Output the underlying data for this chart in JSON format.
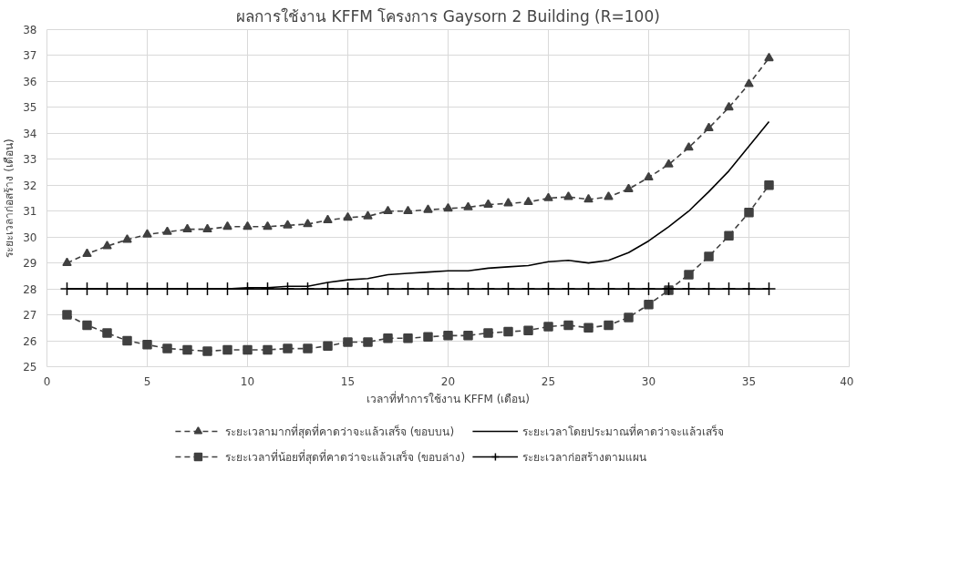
{
  "chart_data": {
    "type": "line",
    "title": "ผลการใช้งาน KFFM โครงการ Gaysorn 2 Building (R=100)",
    "xlabel": "เวลาที่ทำการใช้งาน KFFM (เดือน)",
    "ylabel": "ระยะเวลาก่อสร้าง (เดือน)",
    "x": [
      1,
      2,
      3,
      4,
      5,
      6,
      7,
      8,
      9,
      10,
      11,
      12,
      13,
      14,
      15,
      16,
      17,
      18,
      19,
      20,
      21,
      22,
      23,
      24,
      25,
      26,
      27,
      28,
      29,
      30,
      31,
      32,
      33,
      34,
      35,
      36
    ],
    "series": [
      {
        "name": "ระยะเวลามากที่สุดที่คาดว่าจะแล้วเสร็จ (ขอบบน)",
        "color": "#404040",
        "marker": "triangle",
        "line_style": "dashed",
        "values": [
          29.0,
          29.35,
          29.65,
          29.9,
          30.1,
          30.2,
          30.3,
          30.3,
          30.4,
          30.4,
          30.4,
          30.45,
          30.5,
          30.65,
          30.75,
          30.8,
          31.0,
          31.0,
          31.05,
          31.1,
          31.15,
          31.25,
          31.3,
          31.35,
          31.5,
          31.55,
          31.45,
          31.55,
          31.85,
          32.3,
          32.8,
          33.45,
          34.2,
          35.0,
          35.9,
          36.9
        ]
      },
      {
        "name": "ระยะเวลาโดยประมาณที่คาดว่าจะแล้วเสร็จ",
        "color": "#000000",
        "marker": "none",
        "line_style": "solid",
        "values": [
          28.0,
          28.0,
          28.0,
          28.0,
          28.0,
          28.0,
          28.0,
          28.0,
          28.0,
          28.05,
          28.05,
          28.1,
          28.1,
          28.25,
          28.35,
          28.4,
          28.55,
          28.6,
          28.65,
          28.7,
          28.7,
          28.8,
          28.85,
          28.9,
          29.05,
          29.1,
          29.0,
          29.1,
          29.4,
          29.85,
          30.4,
          31.0,
          31.75,
          32.55,
          33.5,
          34.45
        ]
      },
      {
        "name": "ระยะเวลาที่น้อยที่สุดที่คาดว่าจะแล้วเสร็จ (ขอบล่าง)",
        "color": "#404040",
        "marker": "square",
        "line_style": "dashed",
        "values": [
          27.0,
          26.6,
          26.3,
          26.0,
          25.85,
          25.7,
          25.65,
          25.6,
          25.65,
          25.65,
          25.65,
          25.7,
          25.7,
          25.8,
          25.95,
          25.95,
          26.1,
          26.1,
          26.15,
          26.2,
          26.2,
          26.3,
          26.35,
          26.4,
          26.55,
          26.6,
          26.5,
          26.6,
          26.9,
          27.4,
          27.95,
          28.55,
          29.25,
          30.05,
          30.95,
          32.0
        ]
      },
      {
        "name": "ระยะเวลาก่อสร้างตามแผน",
        "color": "#000000",
        "marker": "cross",
        "line_style": "solid",
        "values": [
          28,
          28,
          28,
          28,
          28,
          28,
          28,
          28,
          28,
          28,
          28,
          28,
          28,
          28,
          28,
          28,
          28,
          28,
          28,
          28,
          28,
          28,
          28,
          28,
          28,
          28,
          28,
          28,
          28,
          28,
          28,
          28,
          28,
          28,
          28,
          28
        ]
      }
    ],
    "xlim": [
      0,
      40
    ],
    "xticks": [
      0,
      5,
      10,
      15,
      20,
      25,
      30,
      35,
      40
    ],
    "ylim": [
      25,
      38
    ],
    "yticks": [
      25,
      26,
      27,
      28,
      29,
      30,
      31,
      32,
      33,
      34,
      35,
      36,
      37,
      38
    ],
    "grid": true,
    "legend": "bottom"
  }
}
